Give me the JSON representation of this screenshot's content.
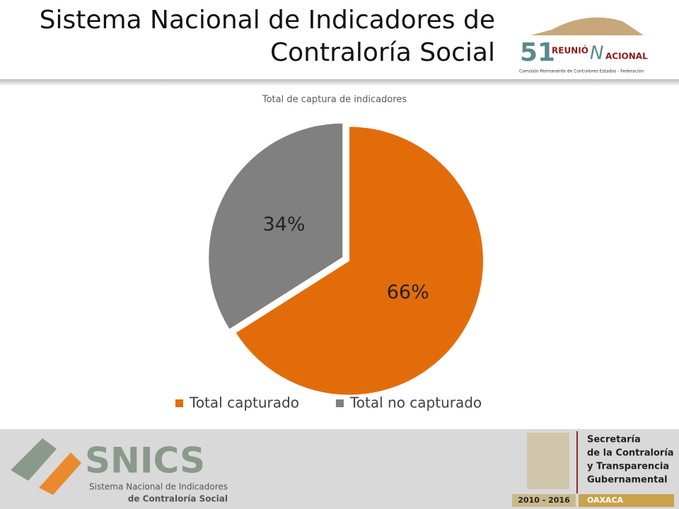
{
  "header": {
    "title_lines": [
      "Sistema Nacional de Indicadores de",
      "Contraloría Social"
    ],
    "logo": {
      "number": "51",
      "word_1": "REUNIÓ",
      "word_2": "ACIONAL",
      "letter": "N",
      "caption": "Comisión Permanente de Contralores Estados - Federación"
    }
  },
  "chart_data": {
    "type": "pie",
    "title": "Total de captura de indicadores",
    "categories": [
      "Total capturado",
      "Total no capturado"
    ],
    "values": [
      66,
      34
    ],
    "value_labels": [
      "66%",
      "34%"
    ],
    "colors": [
      "#e36c0a",
      "#808080"
    ],
    "legend": "bottom"
  },
  "footer": {
    "snics": "SNICS",
    "snics_line_1": "Sistema Nacional de Indicadores",
    "snics_line_2": "de Contraloría Social",
    "secretaria": [
      "Secretaría",
      "de la Contraloría",
      "y Transparencia",
      "Gubernamental"
    ],
    "years": "2010 - 2016",
    "state": "OAXACA"
  }
}
